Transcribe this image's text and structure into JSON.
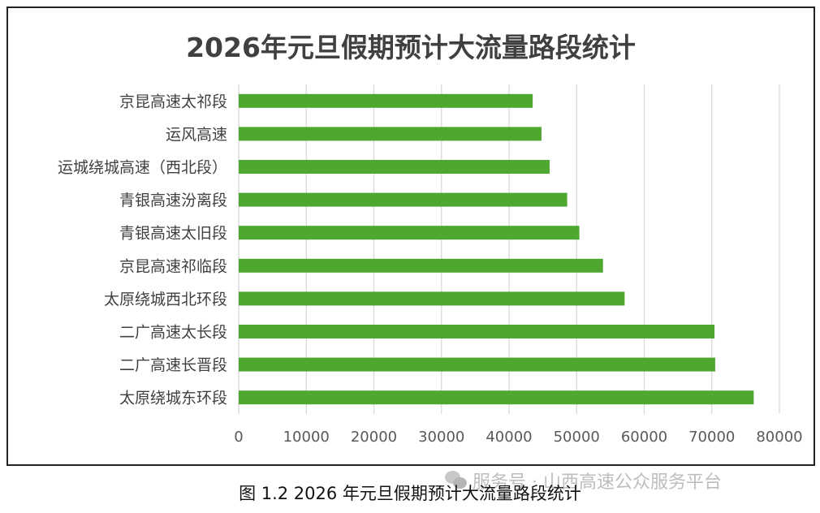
{
  "chart_data": {
    "type": "bar",
    "orientation": "horizontal",
    "title": "2026年元旦假期预计大流量路段统计",
    "categories": [
      "京昆高速太祁段",
      "运风高速",
      "运城绕城高速（西北段）",
      "青银高速汾离段",
      "青银高速太旧段",
      "京昆高速祁临段",
      "太原绕城西北环段",
      "二广高速太长段",
      "二广高速长晋段",
      "太原绕城东环段"
    ],
    "values": [
      43500,
      44800,
      46000,
      48600,
      50400,
      53900,
      57100,
      70400,
      70500,
      76200
    ],
    "xlim": [
      0,
      80000
    ],
    "xticks": [
      "0",
      "10000",
      "20000",
      "30000",
      "40000",
      "50000",
      "60000",
      "70000",
      "80000"
    ],
    "grid": "vertical",
    "legend": "none",
    "bar_color": "#4ea72e",
    "grid_color": "#d9d9d9",
    "text_color": "#404040"
  },
  "caption": "图 1.2 2026 年元旦假期预计大流量路段统计",
  "watermark": "服务号 · 山西高速公众服务平台"
}
